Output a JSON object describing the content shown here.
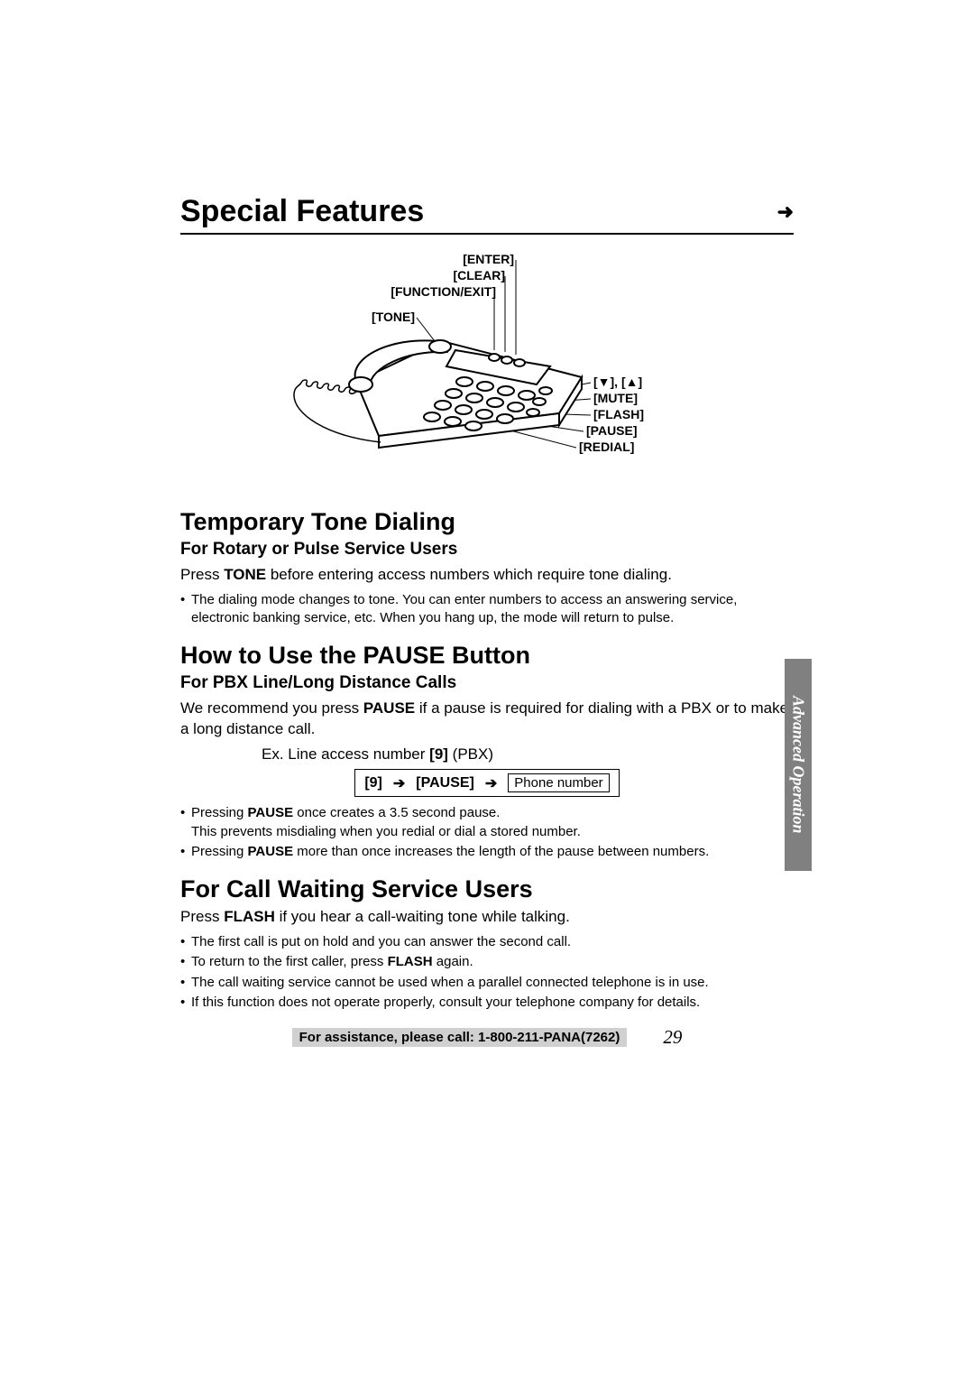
{
  "header": {
    "title": "Special Features"
  },
  "diagram": {
    "labels": {
      "enter": "[ENTER]",
      "clear": "[CLEAR]",
      "function_exit": "[FUNCTION/EXIT]",
      "tone": "[TONE]",
      "arrows": "[▼], [▲]",
      "mute": "[MUTE]",
      "flash": "[FLASH]",
      "pause": "[PAUSE]",
      "redial": "[REDIAL]"
    },
    "label_fontsize": 14,
    "label_fontweight": "bold",
    "line_color": "#000000",
    "phone_fill": "#ffffff",
    "phone_stroke": "#000000"
  },
  "sections": [
    {
      "title": "Temporary Tone Dialing",
      "subtitle": "For Rotary or Pulse Service Users",
      "body_html": "Press <b>TONE</b> before entering access numbers which require tone dialing.",
      "bullets": [
        "The dialing mode changes to tone. You can enter numbers to access an answering service, electronic banking service, etc. When you hang up, the mode will return to pulse."
      ]
    },
    {
      "title": "How to Use the PAUSE Button",
      "subtitle": "For PBX Line/Long Distance Calls",
      "body_html": "We recommend you press <b>PAUSE</b> if a pause is required for dialing with a PBX or to make a long distance call.",
      "example_html": "Ex. Line access number <b>[9]</b> (PBX)",
      "sequence": {
        "items": [
          "[9]",
          "[PAUSE]"
        ],
        "final_box": "Phone number"
      },
      "bullets_html": [
        "Pressing <b>PAUSE</b> once creates a 3.5 second pause.<br>This prevents misdialing when you redial or dial a stored number.",
        "Pressing <b>PAUSE</b> more than once increases the length of the pause between numbers."
      ]
    },
    {
      "title": "For Call Waiting Service Users",
      "body_html": "Press <b>FLASH</b> if you hear a call-waiting tone while talking.",
      "bullets_html": [
        "The first call is put on hold and you can answer the second call.",
        "To return to the first caller, press <b>FLASH</b> again.",
        "The call waiting service cannot be used when a parallel connected telephone is in use.",
        "If this function does not operate properly, consult your telephone company for details."
      ]
    }
  ],
  "side_tab": "Advanced Operation",
  "footer": {
    "assist": "For assistance, please call: 1-800-211-PANA(7262)",
    "page": "29"
  },
  "colors": {
    "text": "#000000",
    "background": "#ffffff",
    "tab_bg": "#808080",
    "tab_text": "#ffffff",
    "assist_bg": "#d0d0d0"
  }
}
